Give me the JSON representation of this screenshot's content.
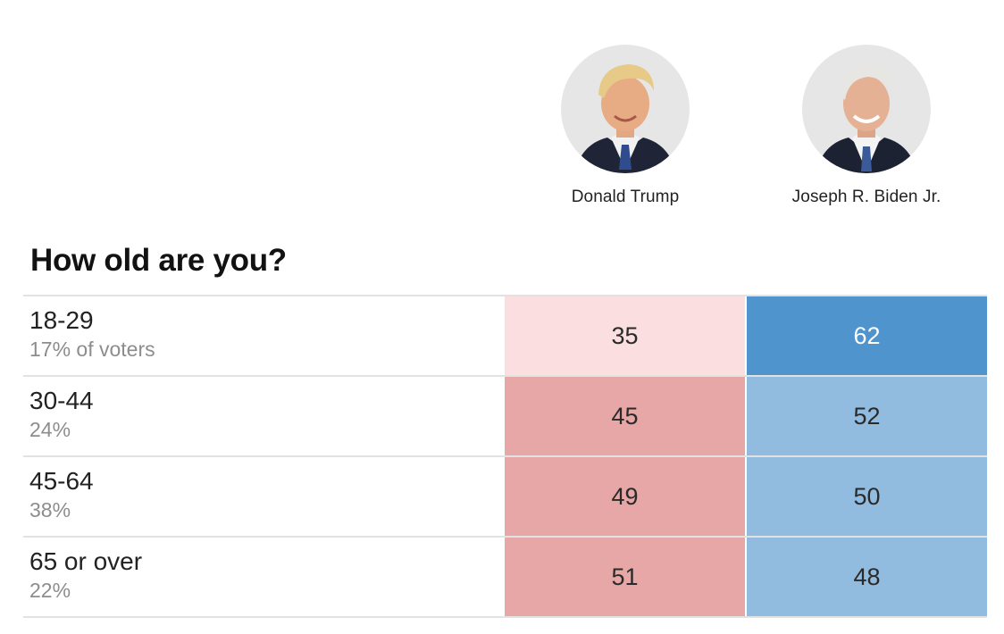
{
  "candidates": [
    {
      "name": "Donald Trump"
    },
    {
      "name": "Joseph R. Biden Jr."
    }
  ],
  "question": "How old are you?",
  "colors": {
    "trump_light": "#fbdfe0",
    "trump_mid": "#e8a7a7",
    "biden_dark": "#4f94cc",
    "biden_mid": "#92bbe0"
  },
  "rows": [
    {
      "group": "18-29",
      "share": "17% of voters",
      "trump": "35",
      "biden": "62"
    },
    {
      "group": "30-44",
      "share": "24%",
      "trump": "45",
      "biden": "52"
    },
    {
      "group": "45-64",
      "share": "38%",
      "trump": "49",
      "biden": "50"
    },
    {
      "group": "65 or over",
      "share": "22%",
      "trump": "51",
      "biden": "48"
    }
  ]
}
